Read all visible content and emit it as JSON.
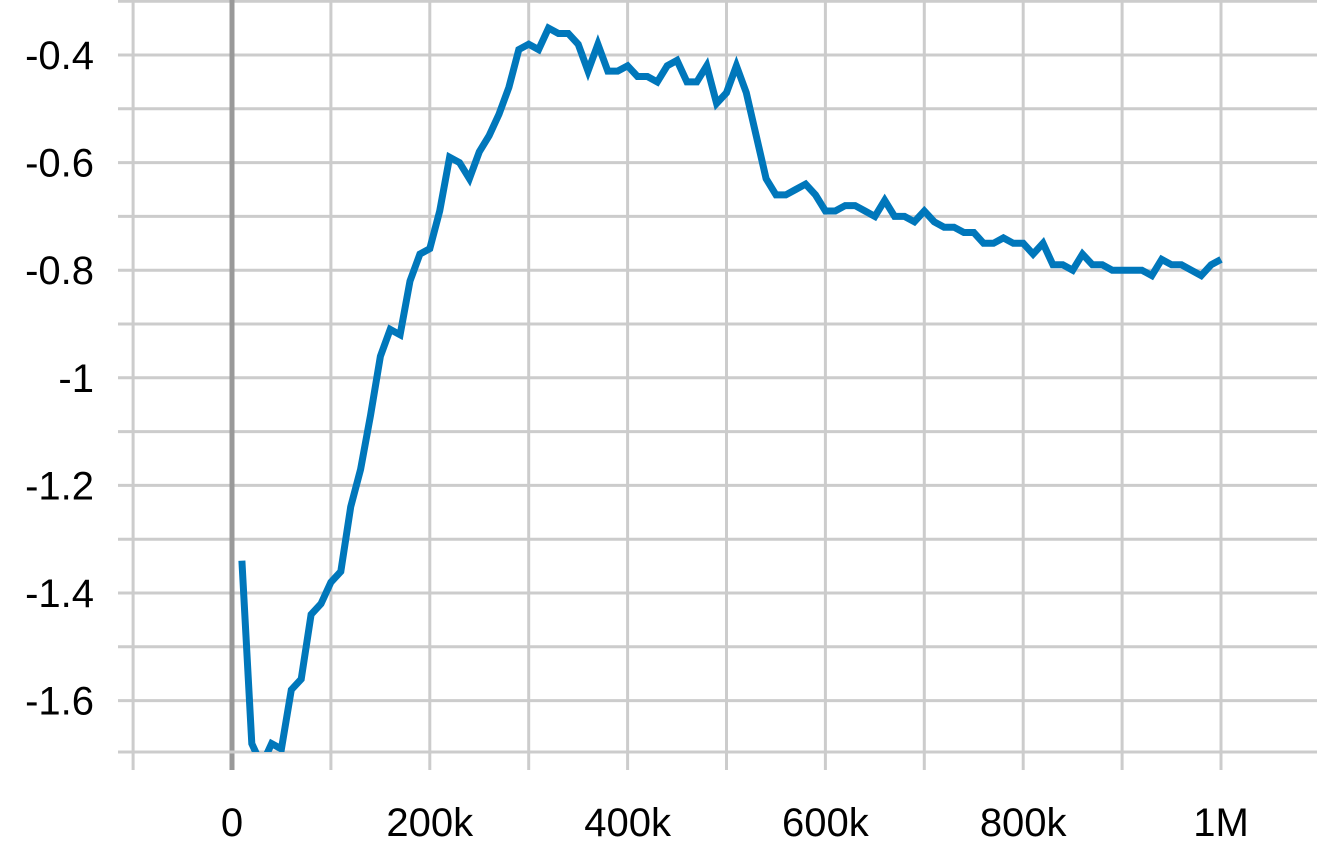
{
  "chart_data": {
    "type": "line",
    "title": "",
    "xlabel": "",
    "ylabel": "",
    "xlim": [
      -100000,
      1100000
    ],
    "ylim": [
      -1.7,
      -0.3
    ],
    "x_ticks": [
      {
        "value": 0,
        "label": "0"
      },
      {
        "value": 200000,
        "label": "200k"
      },
      {
        "value": 400000,
        "label": "400k"
      },
      {
        "value": 600000,
        "label": "600k"
      },
      {
        "value": 800000,
        "label": "800k"
      },
      {
        "value": 1000000,
        "label": "1M"
      }
    ],
    "x_minor_gridlines": [
      -100000,
      100000,
      300000,
      500000,
      700000,
      900000,
      1100000
    ],
    "y_ticks": [
      {
        "value": -0.4,
        "label": "-0.4"
      },
      {
        "value": -0.6,
        "label": "-0.6"
      },
      {
        "value": -0.8,
        "label": "-0.8"
      },
      {
        "value": -1.0,
        "label": "-1"
      },
      {
        "value": -1.2,
        "label": "-1.2"
      },
      {
        "value": -1.4,
        "label": "-1.4"
      },
      {
        "value": -1.6,
        "label": "-1.6"
      }
    ],
    "y_minor_gridlines": [
      -0.3,
      -0.5,
      -0.7,
      -0.9,
      -1.1,
      -1.3,
      -1.5,
      -1.7
    ],
    "grid": true,
    "zero_line_x": 0,
    "colors": {
      "series": "#0077bb",
      "grid": "#cccccc",
      "zero_line": "#999999",
      "axis": "#cccccc",
      "text": "#000000"
    },
    "series": [
      {
        "x": [
          10000,
          20000,
          30000,
          40000,
          50000,
          60000,
          70000,
          80000,
          90000,
          100000,
          110000,
          120000,
          130000,
          140000,
          150000,
          160000,
          170000,
          180000,
          190000,
          200000,
          210000,
          220000,
          230000,
          240000,
          250000,
          260000,
          270000,
          280000,
          290000,
          300000,
          310000,
          320000,
          330000,
          340000,
          350000,
          360000,
          370000,
          380000,
          390000,
          400000,
          410000,
          420000,
          430000,
          440000,
          450000,
          460000,
          470000,
          480000,
          490000,
          500000,
          510000,
          520000,
          530000,
          540000,
          550000,
          560000,
          570000,
          580000,
          590000,
          600000,
          610000,
          620000,
          630000,
          640000,
          650000,
          660000,
          670000,
          680000,
          690000,
          700000,
          710000,
          720000,
          730000,
          740000,
          750000,
          760000,
          770000,
          780000,
          790000,
          800000,
          810000,
          820000,
          830000,
          840000,
          850000,
          860000,
          870000,
          880000,
          890000,
          900000,
          910000,
          920000,
          930000,
          940000,
          950000,
          960000,
          970000,
          980000,
          990000,
          1000000
        ],
        "y": [
          -1.34,
          -1.68,
          -1.72,
          -1.68,
          -1.69,
          -1.58,
          -1.56,
          -1.44,
          -1.42,
          -1.38,
          -1.36,
          -1.24,
          -1.17,
          -1.07,
          -0.96,
          -0.91,
          -0.92,
          -0.82,
          -0.77,
          -0.76,
          -0.69,
          -0.59,
          -0.6,
          -0.63,
          -0.58,
          -0.55,
          -0.51,
          -0.46,
          -0.39,
          -0.38,
          -0.39,
          -0.35,
          -0.36,
          -0.36,
          -0.38,
          -0.43,
          -0.38,
          -0.43,
          -0.43,
          -0.42,
          -0.44,
          -0.44,
          -0.45,
          -0.42,
          -0.41,
          -0.45,
          -0.45,
          -0.42,
          -0.49,
          -0.47,
          -0.42,
          -0.47,
          -0.55,
          -0.63,
          -0.66,
          -0.66,
          -0.65,
          -0.64,
          -0.66,
          -0.69,
          -0.69,
          -0.68,
          -0.68,
          -0.69,
          -0.7,
          -0.67,
          -0.7,
          -0.7,
          -0.71,
          -0.69,
          -0.71,
          -0.72,
          -0.72,
          -0.73,
          -0.73,
          -0.75,
          -0.75,
          -0.74,
          -0.75,
          -0.75,
          -0.77,
          -0.75,
          -0.79,
          -0.79,
          -0.8,
          -0.77,
          -0.79,
          -0.79,
          -0.8,
          -0.8,
          -0.8,
          -0.8,
          -0.81,
          -0.78,
          -0.79,
          -0.79,
          -0.8,
          -0.81,
          -0.79,
          -0.78
        ]
      }
    ]
  }
}
